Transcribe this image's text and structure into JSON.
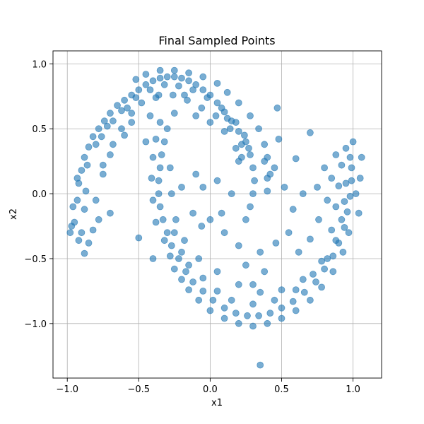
{
  "chart_data": {
    "type": "scatter",
    "title": "Final Sampled Points",
    "xlabel": "x1",
    "ylabel": "x2",
    "xlim": [
      -1.1,
      1.2
    ],
    "ylim": [
      -1.42,
      1.1
    ],
    "grid": true,
    "x_ticks": [
      {
        "value": -1.0,
        "label": "−1.0"
      },
      {
        "value": -0.5,
        "label": "−0.5"
      },
      {
        "value": 0.0,
        "label": "0.0"
      },
      {
        "value": 0.5,
        "label": "0.5"
      },
      {
        "value": 1.0,
        "label": "1.0"
      }
    ],
    "y_ticks": [
      {
        "value": 1.0,
        "label": "1.0"
      },
      {
        "value": 0.5,
        "label": "0.5"
      },
      {
        "value": 0.0,
        "label": "0.0"
      },
      {
        "value": -0.5,
        "label": "−0.5"
      },
      {
        "value": -1.0,
        "label": "−1.0"
      }
    ],
    "series": [
      {
        "marker_color": "#1f77b4",
        "marker_alpha": 0.6,
        "points": [
          [
            -0.95,
            -0.22
          ],
          [
            -0.93,
            -0.05
          ],
          [
            -0.92,
            0.08
          ],
          [
            -0.9,
            0.18
          ],
          [
            -0.88,
            0.28
          ],
          [
            -0.85,
            0.36
          ],
          [
            -0.82,
            0.44
          ],
          [
            -0.78,
            0.5
          ],
          [
            -0.74,
            0.56
          ],
          [
            -0.7,
            0.62
          ],
          [
            -0.65,
            0.68
          ],
          [
            -0.6,
            0.72
          ],
          [
            -0.55,
            0.76
          ],
          [
            -0.5,
            0.8
          ],
          [
            -0.45,
            0.84
          ],
          [
            -0.4,
            0.87
          ],
          [
            -0.35,
            0.89
          ],
          [
            -0.3,
            0.9
          ],
          [
            -0.25,
            0.9
          ],
          [
            -0.2,
            0.89
          ],
          [
            -0.15,
            0.87
          ],
          [
            -0.1,
            0.84
          ],
          [
            -0.05,
            0.8
          ],
          [
            0.0,
            0.76
          ],
          [
            0.05,
            0.7
          ],
          [
            0.1,
            0.63
          ],
          [
            0.15,
            0.56
          ],
          [
            0.2,
            0.48
          ],
          [
            0.25,
            0.4
          ],
          [
            0.28,
            0.3
          ],
          [
            0.3,
            0.2
          ],
          [
            0.31,
            0.1
          ],
          [
            0.3,
            0.0
          ],
          [
            0.28,
            -0.1
          ],
          [
            0.25,
            -0.2
          ],
          [
            -0.9,
            -0.3
          ],
          [
            -0.92,
            -0.36
          ],
          [
            -0.88,
            -0.12
          ],
          [
            -0.87,
            0.02
          ],
          [
            -0.86,
            0.22
          ],
          [
            -0.8,
            0.38
          ],
          [
            -0.72,
            0.52
          ],
          [
            -0.62,
            0.64
          ],
          [
            -0.52,
            0.74
          ],
          [
            -0.42,
            0.8
          ],
          [
            -0.32,
            0.84
          ],
          [
            -0.22,
            0.83
          ],
          [
            -0.12,
            0.8
          ],
          [
            -0.02,
            0.74
          ],
          [
            0.08,
            0.66
          ],
          [
            0.18,
            0.55
          ],
          [
            0.24,
            0.45
          ],
          [
            0.27,
            0.35
          ],
          [
            0.22,
            0.38
          ],
          [
            0.12,
            0.58
          ],
          [
            -0.18,
            0.76
          ],
          [
            -0.38,
            0.74
          ],
          [
            -0.58,
            0.66
          ],
          [
            -0.68,
            0.56
          ],
          [
            -0.76,
            0.44
          ],
          [
            -0.3,
            0.5
          ],
          [
            -0.32,
            0.4
          ],
          [
            -0.34,
            0.3
          ],
          [
            -0.35,
            0.2
          ],
          [
            -0.36,
            0.1
          ],
          [
            -0.36,
            0.0
          ],
          [
            -0.35,
            -0.1
          ],
          [
            -0.33,
            -0.2
          ],
          [
            -0.3,
            -0.3
          ],
          [
            -0.27,
            -0.4
          ],
          [
            -0.22,
            -0.5
          ],
          [
            -0.17,
            -0.6
          ],
          [
            -0.12,
            -0.68
          ],
          [
            -0.05,
            -0.75
          ],
          [
            0.02,
            -0.82
          ],
          [
            0.1,
            -0.88
          ],
          [
            0.18,
            -0.92
          ],
          [
            0.26,
            -0.94
          ],
          [
            0.34,
            -0.94
          ],
          [
            0.42,
            -0.92
          ],
          [
            0.5,
            -0.88
          ],
          [
            0.58,
            -0.83
          ],
          [
            0.66,
            -0.76
          ],
          [
            0.74,
            -0.68
          ],
          [
            0.8,
            -0.58
          ],
          [
            0.86,
            -0.48
          ],
          [
            0.9,
            -0.38
          ],
          [
            0.94,
            -0.26
          ],
          [
            0.96,
            -0.14
          ],
          [
            0.98,
            -0.02
          ],
          [
            0.99,
            0.1
          ],
          [
            0.99,
            0.2
          ],
          [
            0.98,
            0.28
          ],
          [
            -0.25,
            -0.3
          ],
          [
            -0.2,
            -0.45
          ],
          [
            -0.15,
            -0.55
          ],
          [
            -0.05,
            -0.65
          ],
          [
            0.05,
            -0.75
          ],
          [
            0.15,
            -0.82
          ],
          [
            0.3,
            -0.85
          ],
          [
            0.45,
            -0.82
          ],
          [
            0.6,
            -0.74
          ],
          [
            0.72,
            -0.62
          ],
          [
            0.82,
            -0.5
          ],
          [
            0.88,
            -0.36
          ],
          [
            0.92,
            -0.2
          ],
          [
            0.94,
            -0.06
          ],
          [
            0.95,
            0.08
          ],
          [
            1.05,
            0.12
          ],
          [
            1.06,
            0.28
          ],
          [
            -0.28,
            0.2
          ],
          [
            -0.27,
            0.0
          ],
          [
            -0.24,
            -0.2
          ],
          [
            -0.18,
            -0.36
          ],
          [
            -0.08,
            -0.5
          ],
          [
            0.05,
            -0.6
          ],
          [
            0.2,
            -0.7
          ],
          [
            0.35,
            -0.76
          ],
          [
            0.5,
            -0.74
          ],
          [
            0.65,
            -0.66
          ],
          [
            0.78,
            -0.52
          ],
          [
            0.85,
            -0.28
          ],
          [
            0.88,
            -0.1
          ],
          [
            0.9,
            0.06
          ],
          [
            0.92,
            0.22
          ],
          [
            0.47,
            0.66
          ],
          [
            0.35,
            -1.32
          ],
          [
            -0.5,
            -0.34
          ],
          [
            -0.4,
            -0.5
          ],
          [
            -0.45,
            0.4
          ],
          [
            0.7,
            0.47
          ],
          [
            0.6,
            0.27
          ],
          [
            0.8,
            0.2
          ],
          [
            0.75,
            0.05
          ],
          [
            0.65,
            0.0
          ],
          [
            0.58,
            -0.12
          ],
          [
            0.46,
            -0.38
          ],
          [
            0.38,
            -0.6
          ],
          [
            0.3,
            -0.7
          ],
          [
            0.45,
            0.2
          ],
          [
            0.4,
            0.12
          ],
          [
            0.2,
            0.25
          ],
          [
            0.15,
            0.0
          ],
          [
            0.05,
            0.1
          ],
          [
            -0.05,
            0.05
          ],
          [
            -0.1,
            0.15
          ],
          [
            -0.2,
            0.05
          ],
          [
            0.0,
            -0.2
          ],
          [
            0.1,
            -0.3
          ],
          [
            0.2,
            -0.4
          ],
          [
            -0.12,
            -0.15
          ],
          [
            -0.06,
            -0.25
          ],
          [
            0.08,
            -0.15
          ],
          [
            0.25,
            -0.55
          ],
          [
            0.35,
            -0.45
          ],
          [
            -0.6,
            0.45
          ],
          [
            -0.7,
            0.3
          ],
          [
            -0.75,
            0.15
          ],
          [
            -0.8,
            -0.05
          ],
          [
            -0.78,
            -0.2
          ],
          [
            -0.55,
            0.55
          ],
          [
            -0.42,
            0.6
          ],
          [
            -0.25,
            0.62
          ],
          [
            -0.1,
            0.6
          ],
          [
            0.0,
            0.55
          ],
          [
            0.1,
            0.48
          ],
          [
            0.18,
            0.35
          ],
          [
            0.38,
            0.25
          ],
          [
            0.48,
            0.42
          ],
          [
            0.52,
            0.05
          ],
          [
            0.55,
            -0.3
          ],
          [
            0.62,
            -0.45
          ],
          [
            0.7,
            -0.35
          ],
          [
            0.76,
            -0.2
          ],
          [
            0.82,
            -0.05
          ],
          [
            0.85,
            0.12
          ],
          [
            0.88,
            0.3
          ],
          [
            0.95,
            0.35
          ],
          [
            1.0,
            0.4
          ],
          [
            1.02,
            0.0
          ],
          [
            1.04,
            -0.15
          ],
          [
            0.97,
            -0.3
          ],
          [
            0.93,
            -0.45
          ],
          [
            0.86,
            -0.6
          ],
          [
            0.78,
            -0.72
          ],
          [
            0.7,
            -0.82
          ],
          [
            0.6,
            -0.9
          ],
          [
            0.5,
            -0.96
          ],
          [
            0.4,
            -1.0
          ],
          [
            0.3,
            -1.02
          ],
          [
            0.2,
            -1.0
          ],
          [
            0.1,
            -0.96
          ],
          [
            0.0,
            -0.9
          ],
          [
            -0.08,
            -0.82
          ],
          [
            -0.15,
            -0.74
          ],
          [
            -0.2,
            -0.66
          ],
          [
            -0.25,
            -0.58
          ],
          [
            -0.28,
            -0.48
          ],
          [
            -0.32,
            -0.36
          ],
          [
            -0.38,
            -0.22
          ],
          [
            -0.4,
            -0.05
          ],
          [
            -0.41,
            0.12
          ],
          [
            -0.4,
            0.28
          ],
          [
            -0.38,
            0.42
          ],
          [
            -0.35,
            0.55
          ],
          [
            -0.52,
            0.88
          ],
          [
            -0.45,
            0.92
          ],
          [
            -0.35,
            0.95
          ],
          [
            -0.25,
            0.95
          ],
          [
            -0.15,
            0.93
          ],
          [
            -0.05,
            0.9
          ],
          [
            0.05,
            0.85
          ],
          [
            0.12,
            0.78
          ],
          [
            0.2,
            0.7
          ],
          [
            0.28,
            0.6
          ],
          [
            0.34,
            0.5
          ],
          [
            0.38,
            0.38
          ],
          [
            0.4,
            0.28
          ],
          [
            0.42,
            0.15
          ],
          [
            0.4,
            0.02
          ],
          [
            -0.97,
            -0.25
          ],
          [
            -0.96,
            -0.1
          ],
          [
            -0.98,
            -0.3
          ],
          [
            -0.93,
            0.12
          ],
          [
            -0.85,
            -0.38
          ],
          [
            -0.88,
            -0.46
          ],
          [
            -0.82,
            -0.28
          ],
          [
            -0.7,
            -0.15
          ],
          [
            -0.75,
            0.22
          ],
          [
            -0.68,
            0.38
          ],
          [
            -0.62,
            0.5
          ],
          [
            -0.55,
            0.62
          ],
          [
            -0.48,
            0.7
          ],
          [
            -0.36,
            0.76
          ],
          [
            -0.26,
            0.76
          ],
          [
            -0.16,
            0.72
          ],
          [
            -0.06,
            0.66
          ],
          [
            0.04,
            0.6
          ],
          [
            0.14,
            0.5
          ],
          [
            0.22,
            0.28
          ]
        ]
      }
    ]
  }
}
